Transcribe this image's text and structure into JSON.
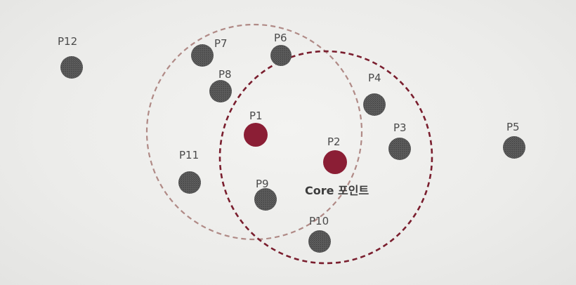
{
  "diagram": {
    "colors": {
      "background": "#ececea",
      "point": "#5a5a5a",
      "core_point": "#8b1e35",
      "core_circle_1": "#b08a86",
      "core_circle_2": "#7a1e2e",
      "label": "#4a4a4a"
    },
    "points": [
      {
        "id": "P1",
        "label": "P1",
        "core": true
      },
      {
        "id": "P2",
        "label": "P2",
        "core": true
      },
      {
        "id": "P3",
        "label": "P3",
        "core": false
      },
      {
        "id": "P4",
        "label": "P4",
        "core": false
      },
      {
        "id": "P5",
        "label": "P5",
        "core": false
      },
      {
        "id": "P6",
        "label": "P6",
        "core": false
      },
      {
        "id": "P7",
        "label": "P7",
        "core": false
      },
      {
        "id": "P8",
        "label": "P8",
        "core": false
      },
      {
        "id": "P9",
        "label": "P9",
        "core": false
      },
      {
        "id": "P10",
        "label": "P10",
        "core": false
      },
      {
        "id": "P11",
        "label": "P11",
        "core": false
      },
      {
        "id": "P12",
        "label": "P12",
        "core": false
      }
    ],
    "neighborhoods": [
      {
        "center": "P1",
        "style": "dashed"
      },
      {
        "center": "P2",
        "style": "dashed"
      }
    ],
    "core_caption": "Core 포인트"
  }
}
